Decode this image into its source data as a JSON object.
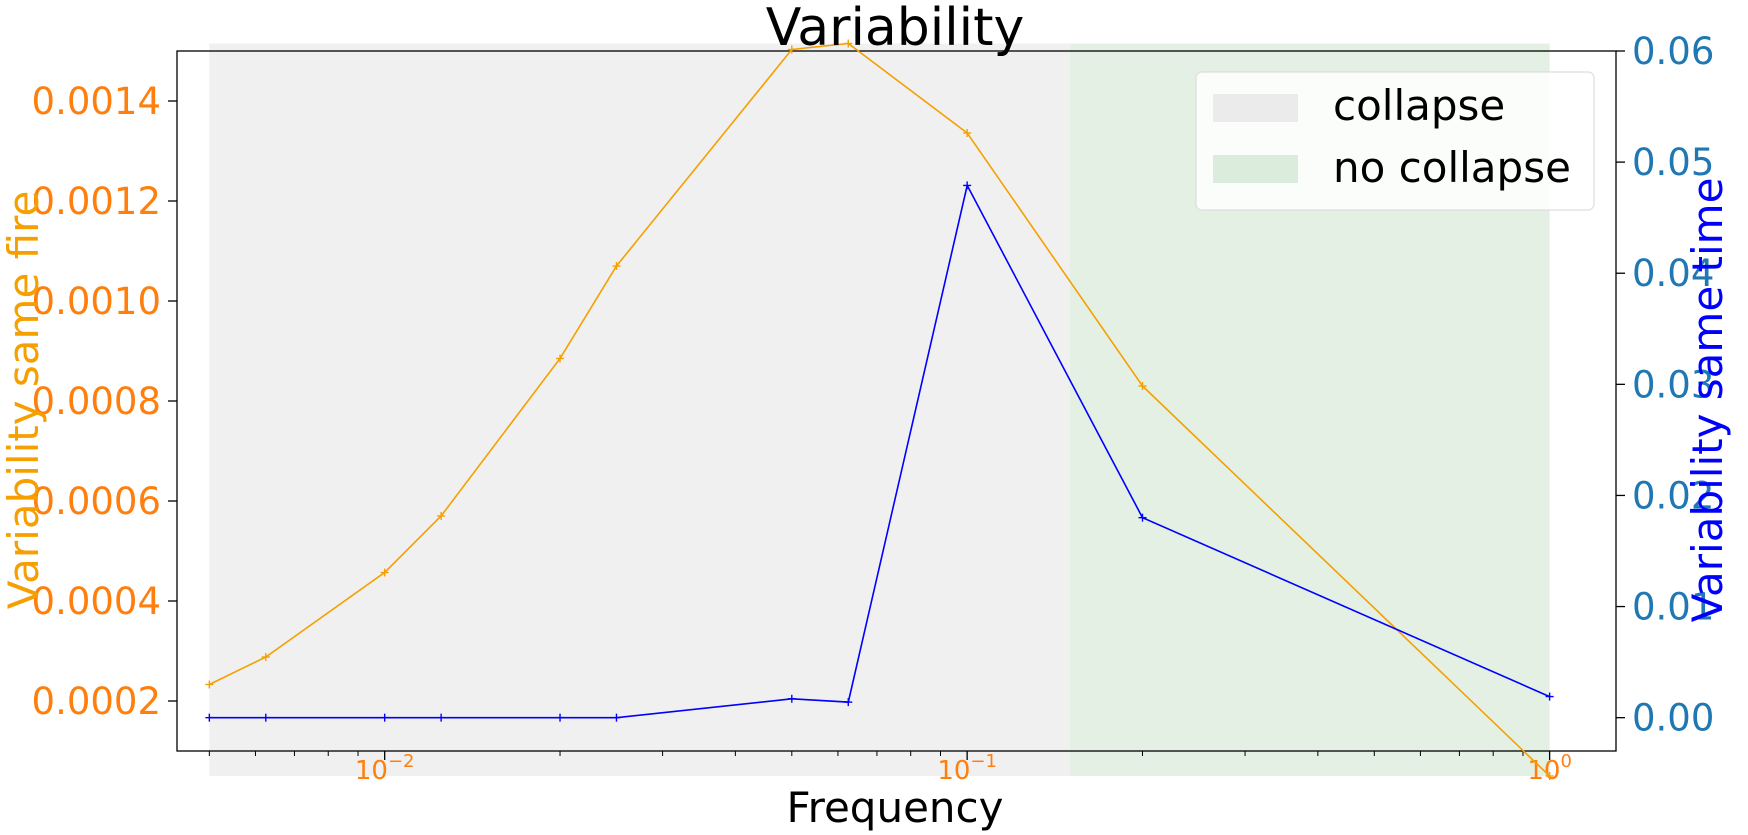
{
  "chart_data": {
    "type": "line",
    "title": "Variability",
    "xlabel": "Frequency",
    "ylabel_left": "Variability same fire",
    "ylabel_right": "Variability same time",
    "x_scale": "log",
    "xlim": [
      0.0044,
      1.3
    ],
    "x_ticks": [
      {
        "value": 0.01,
        "base": "10",
        "exp": "−2"
      },
      {
        "value": 0.1,
        "base": "10",
        "exp": "−1"
      },
      {
        "value": 1,
        "base": "10",
        "exp": "0"
      }
    ],
    "ylim_left": [
      0.0001,
      0.0015
    ],
    "yticks_left": [
      "0.0002",
      "0.0004",
      "0.0006",
      "0.0008",
      "0.0010",
      "0.0012",
      "0.0014"
    ],
    "ylim_right": [
      -0.003,
      0.06
    ],
    "yticks_right": [
      "0.00",
      "0.01",
      "0.02",
      "0.03",
      "0.04",
      "0.05",
      "0.06"
    ],
    "regions": [
      {
        "name": "collapse",
        "x_start": 0.005,
        "x_end": 0.15,
        "color": "#f0f0f0"
      },
      {
        "name": "no collapse",
        "x_start": 0.15,
        "x_end": 1.0,
        "color": "#e4f0e4"
      }
    ],
    "legend_position": "top-right",
    "series": [
      {
        "axis": "left",
        "color": "#f5a000",
        "x": [
          0.005,
          0.00625,
          0.01,
          0.0125,
          0.02,
          0.025,
          0.05,
          0.0625,
          0.1,
          0.2,
          1.0
        ],
        "y": [
          0.000233,
          0.000288,
          0.000457,
          0.00057,
          0.000885,
          0.00107,
          0.001503,
          0.001515,
          0.001336,
          0.00083,
          5e-05
        ]
      },
      {
        "axis": "right",
        "color": "#0000ff",
        "x": [
          0.005,
          0.00625,
          0.01,
          0.0125,
          0.02,
          0.025,
          0.05,
          0.0625,
          0.1,
          0.2,
          1.0
        ],
        "y": [
          0.0,
          0.0,
          0.0,
          0.0,
          0.0,
          0.0,
          0.0017,
          0.0014,
          0.0479,
          0.018,
          0.0019
        ]
      }
    ],
    "colors": {
      "left_axis_text": "#ff7f0e",
      "left_label": "#f5a000",
      "right_axis_text": "#1f77b4",
      "right_label": "#0000ff"
    }
  }
}
